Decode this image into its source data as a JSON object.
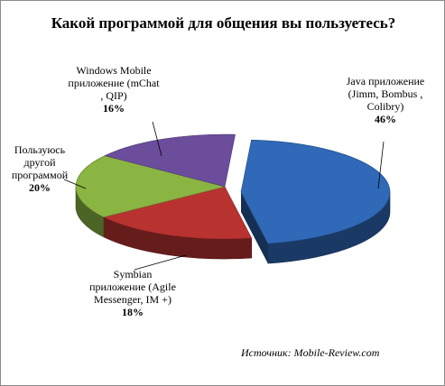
{
  "chart_data": {
    "type": "pie",
    "title": "Какой программой для общения вы пользуетесь?",
    "slices": [
      {
        "name": "Java приложение (Jimm, Bombus , Colibry)",
        "value": 46,
        "percent_label": "46%",
        "color": "#2f69b8"
      },
      {
        "name": "Symbian приложение (Agile Messenger, IM +)",
        "value": 18,
        "percent_label": "18%",
        "color": "#b83230"
      },
      {
        "name": "Пользуюсь другой программой",
        "value": 20,
        "percent_label": "20%",
        "color": "#8ab543"
      },
      {
        "name": "Windows Mobile приложение (mChat , QIP)",
        "value": 16,
        "percent_label": "16%",
        "color": "#6b4d9c"
      }
    ],
    "source": "Источник: Mobile-Review.com"
  }
}
